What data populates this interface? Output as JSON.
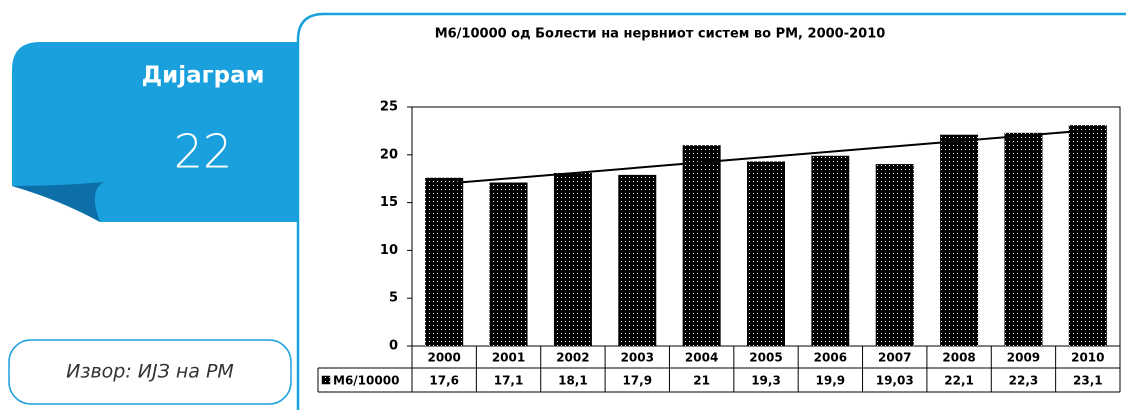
{
  "label": "Дијаграм",
  "number": "22",
  "source": "Извор: ИЈЗ на РМ",
  "chart_data": {
    "type": "bar",
    "title": "М6/10000 од Болести на нервниот систем во РМ, 2000-2010",
    "categories": [
      "2000",
      "2001",
      "2002",
      "2003",
      "2004",
      "2005",
      "2006",
      "2007",
      "2008",
      "2009",
      "2010"
    ],
    "series": [
      {
        "name": "М6/10000",
        "color": "#000000",
        "values": [
          17.6,
          17.1,
          18.1,
          17.9,
          21,
          19.3,
          19.9,
          19.03,
          22.1,
          22.3,
          23.1
        ],
        "value_labels": [
          "17,6",
          "17,1",
          "18,1",
          "17,9",
          "21",
          "19,3",
          "19,9",
          "19,03",
          "22,1",
          "22,3",
          "23,1"
        ]
      }
    ],
    "ylim": [
      0,
      25
    ],
    "yticks": [
      0,
      5,
      10,
      15,
      20,
      25
    ],
    "trendline": true
  }
}
